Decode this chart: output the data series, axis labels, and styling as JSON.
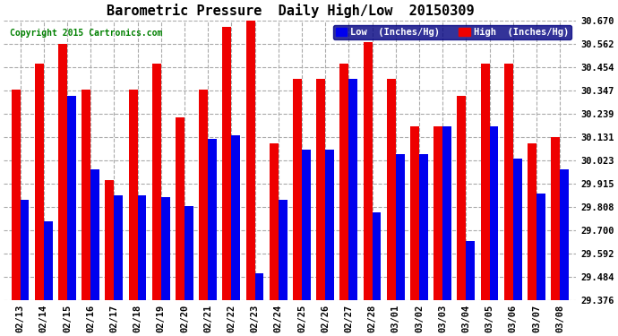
{
  "title": "Barometric Pressure  Daily High/Low  20150309",
  "copyright": "Copyright 2015 Cartronics.com",
  "legend_low": "Low  (Inches/Hg)",
  "legend_high": "High  (Inches/Hg)",
  "categories": [
    "02/13",
    "02/14",
    "02/15",
    "02/16",
    "02/17",
    "02/18",
    "02/19",
    "02/20",
    "02/21",
    "02/22",
    "02/23",
    "02/24",
    "02/25",
    "02/26",
    "02/27",
    "02/28",
    "03/01",
    "03/02",
    "03/03",
    "03/04",
    "03/05",
    "03/06",
    "03/07",
    "03/08"
  ],
  "low": [
    29.84,
    29.74,
    30.32,
    29.98,
    29.86,
    29.86,
    29.85,
    29.81,
    30.12,
    30.14,
    29.5,
    29.84,
    30.07,
    30.07,
    30.4,
    29.78,
    30.05,
    30.05,
    30.18,
    29.65,
    30.18,
    30.03,
    29.87,
    29.98
  ],
  "high": [
    30.35,
    30.47,
    30.56,
    30.35,
    29.93,
    30.35,
    30.47,
    30.22,
    30.35,
    30.64,
    30.67,
    30.1,
    30.4,
    30.4,
    30.47,
    30.57,
    30.4,
    30.18,
    30.18,
    30.32,
    30.47,
    30.47,
    30.1,
    30.13
  ],
  "ymin": 29.376,
  "ymax": 30.67,
  "yticks": [
    29.376,
    29.484,
    29.592,
    29.7,
    29.808,
    29.915,
    30.023,
    30.131,
    30.239,
    30.347,
    30.454,
    30.562,
    30.67
  ],
  "bar_width": 0.38,
  "low_color": "#0000ee",
  "high_color": "#ee0000",
  "bg_color": "#ffffff",
  "grid_color": "#aaaaaa",
  "title_fontsize": 11,
  "copyright_fontsize": 7,
  "tick_fontsize": 7.5,
  "legend_fontsize": 7.5
}
